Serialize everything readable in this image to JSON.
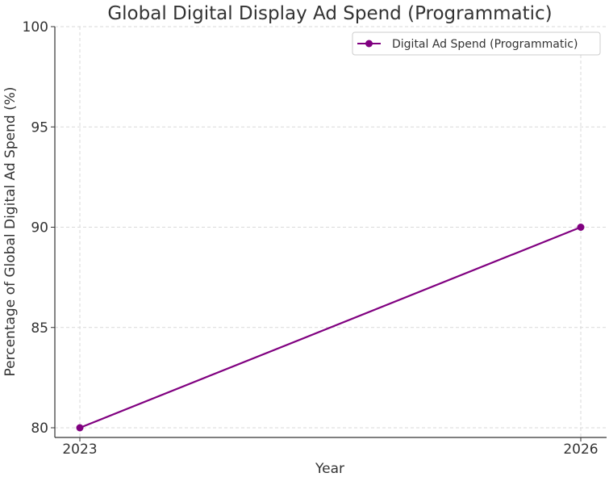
{
  "chart_data": {
    "type": "line",
    "title": "Global Digital Display Ad Spend (Programmatic)",
    "xlabel": "Year",
    "ylabel": "Percentage of Global Digital Ad Spend (%)",
    "x": [
      2023,
      2026
    ],
    "x_ticks": [
      "2023",
      "2026"
    ],
    "ylim": [
      80,
      100
    ],
    "y_ticks": [
      "80",
      "85",
      "90",
      "95",
      "100"
    ],
    "grid": true,
    "legend_position": "top-right",
    "series": [
      {
        "name": "Digital Ad Spend (Programmatic)",
        "values": [
          80,
          90
        ],
        "color": "#800080",
        "marker": "circle"
      }
    ]
  }
}
